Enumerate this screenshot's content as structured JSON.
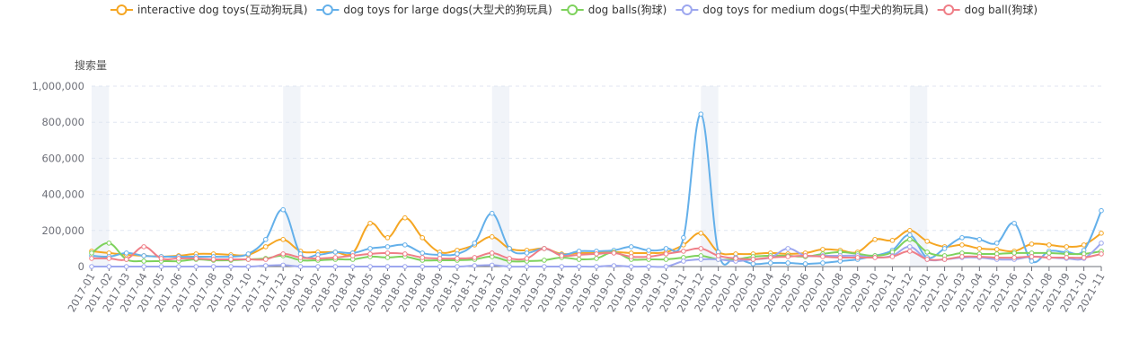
{
  "chart_data": {
    "type": "line",
    "ylabel": "搜索量",
    "ylim": [
      0,
      1000000
    ],
    "yticks": [
      0,
      200000,
      400000,
      600000,
      800000,
      1000000
    ],
    "ytick_labels": [
      "0",
      "200,000",
      "400,000",
      "600,000",
      "800,000",
      "1,000,000"
    ],
    "grid": true,
    "legend_position": "top",
    "highlight_categories": [
      "2017-01",
      "2017-12",
      "2018-12",
      "2019-12",
      "2020-12"
    ],
    "categories": [
      "2017-01",
      "2017-02",
      "2017-03",
      "2017-04",
      "2017-05",
      "2017-06",
      "2017-07",
      "2017-08",
      "2017-09",
      "2017-10",
      "2017-11",
      "2017-12",
      "2018-01",
      "2018-02",
      "2018-03",
      "2018-04",
      "2018-05",
      "2018-06",
      "2018-07",
      "2018-08",
      "2018-09",
      "2018-10",
      "2018-11",
      "2018-12",
      "2019-01",
      "2019-02",
      "2019-03",
      "2019-04",
      "2019-05",
      "2019-06",
      "2019-07",
      "2019-08",
      "2019-09",
      "2019-10",
      "2019-11",
      "2019-12",
      "2020-01",
      "2020-02",
      "2020-03",
      "2020-04",
      "2020-05",
      "2020-06",
      "2020-07",
      "2020-08",
      "2020-09",
      "2020-10",
      "2020-11",
      "2020-12",
      "2021-01",
      "2021-02",
      "2021-03",
      "2021-04",
      "2021-05",
      "2021-06",
      "2021-07",
      "2021-08",
      "2021-09",
      "2021-10",
      "2021-11"
    ],
    "series": [
      {
        "name": "interactive dog toys(互动狗玩具)",
        "color": "#f5a623",
        "values": [
          85000,
          75000,
          65000,
          60000,
          55000,
          60000,
          70000,
          70000,
          65000,
          65000,
          110000,
          150000,
          85000,
          80000,
          80000,
          75000,
          240000,
          160000,
          270000,
          160000,
          80000,
          90000,
          120000,
          165000,
          100000,
          90000,
          100000,
          70000,
          75000,
          75000,
          80000,
          75000,
          75000,
          80000,
          120000,
          185000,
          80000,
          70000,
          70000,
          75000,
          70000,
          75000,
          95000,
          90000,
          80000,
          150000,
          145000,
          200000,
          140000,
          110000,
          120000,
          100000,
          95000,
          85000,
          125000,
          120000,
          110000,
          120000,
          185000
        ]
      },
      {
        "name": "dog toys for large dogs(大型犬的狗玩具)",
        "color": "#64b0ea",
        "values": [
          60000,
          55000,
          75000,
          60000,
          55000,
          55000,
          55000,
          55000,
          55000,
          70000,
          150000,
          315000,
          70000,
          65000,
          80000,
          75000,
          100000,
          110000,
          120000,
          75000,
          65000,
          70000,
          130000,
          295000,
          100000,
          75000,
          100000,
          65000,
          85000,
          85000,
          90000,
          110000,
          90000,
          100000,
          160000,
          845000,
          80000,
          50000,
          15000,
          20000,
          20000,
          15000,
          20000,
          30000,
          40000,
          60000,
          90000,
          175000,
          50000,
          100000,
          160000,
          150000,
          130000,
          240000,
          30000,
          85000,
          80000,
          90000,
          310000
        ]
      },
      {
        "name": "dog balls(狗球)",
        "color": "#7ed25d",
        "values": [
          75000,
          130000,
          40000,
          30000,
          30000,
          30000,
          40000,
          35000,
          35000,
          40000,
          45000,
          60000,
          35000,
          35000,
          40000,
          40000,
          55000,
          50000,
          55000,
          35000,
          35000,
          35000,
          40000,
          55000,
          30000,
          30000,
          35000,
          50000,
          40000,
          45000,
          80000,
          40000,
          40000,
          40000,
          50000,
          60000,
          40000,
          40000,
          55000,
          60000,
          60000,
          55000,
          70000,
          80000,
          70000,
          60000,
          80000,
          150000,
          80000,
          60000,
          75000,
          70000,
          70000,
          75000,
          75000,
          75000,
          70000,
          70000,
          85000
        ]
      },
      {
        "name": "dog toys for medium dogs(中型犬的狗玩具)",
        "color": "#9da7ef",
        "values": [
          0,
          0,
          0,
          0,
          0,
          0,
          0,
          0,
          0,
          0,
          5000,
          8000,
          0,
          0,
          0,
          0,
          0,
          0,
          0,
          0,
          0,
          0,
          5000,
          8000,
          0,
          0,
          0,
          0,
          0,
          0,
          5000,
          0,
          0,
          0,
          30000,
          40000,
          40000,
          30000,
          40000,
          50000,
          100000,
          60000,
          60000,
          60000,
          60000,
          50000,
          60000,
          110000,
          40000,
          40000,
          50000,
          50000,
          40000,
          40000,
          55000,
          50000,
          45000,
          45000,
          130000
        ]
      },
      {
        "name": "dog ball(狗球)",
        "color": "#ef7e87",
        "values": [
          45000,
          45000,
          40000,
          110000,
          45000,
          45000,
          45000,
          40000,
          40000,
          40000,
          40000,
          70000,
          50000,
          45000,
          50000,
          60000,
          70000,
          75000,
          70000,
          50000,
          45000,
          45000,
          50000,
          75000,
          45000,
          45000,
          100000,
          60000,
          65000,
          70000,
          75000,
          55000,
          55000,
          70000,
          85000,
          100000,
          60000,
          45000,
          40000,
          50000,
          55000,
          60000,
          55000,
          50000,
          50000,
          50000,
          55000,
          85000,
          40000,
          40000,
          55000,
          55000,
          50000,
          50000,
          55000,
          50000,
          50000,
          50000,
          70000
        ]
      }
    ]
  }
}
